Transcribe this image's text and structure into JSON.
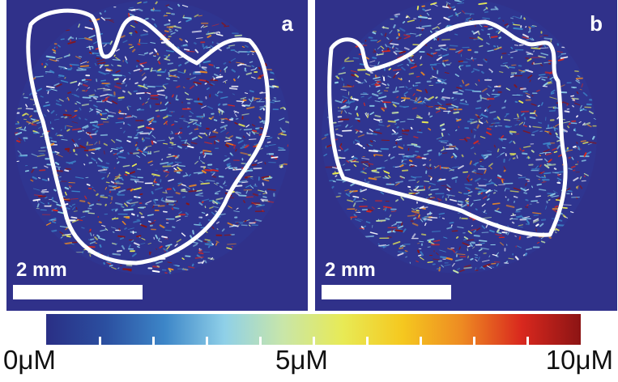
{
  "panels": [
    {
      "letter": "a",
      "scale_label": "2 mm"
    },
    {
      "letter": "b",
      "scale_label": "2 mm"
    }
  ],
  "colorbar": {
    "min_label": "0μM",
    "mid_label": "5μM",
    "max_label": "10μM",
    "min_value": 0,
    "max_value": 10,
    "unit": "μM",
    "colormap": [
      "#2a2f85",
      "#2b4fa0",
      "#3d86c8",
      "#8fd0e8",
      "#c9e6a8",
      "#e8ea55",
      "#f5c81f",
      "#ee8a22",
      "#d9281e",
      "#8c1414"
    ]
  },
  "colors": {
    "background": "#30318a",
    "outline": "#ffffff"
  }
}
